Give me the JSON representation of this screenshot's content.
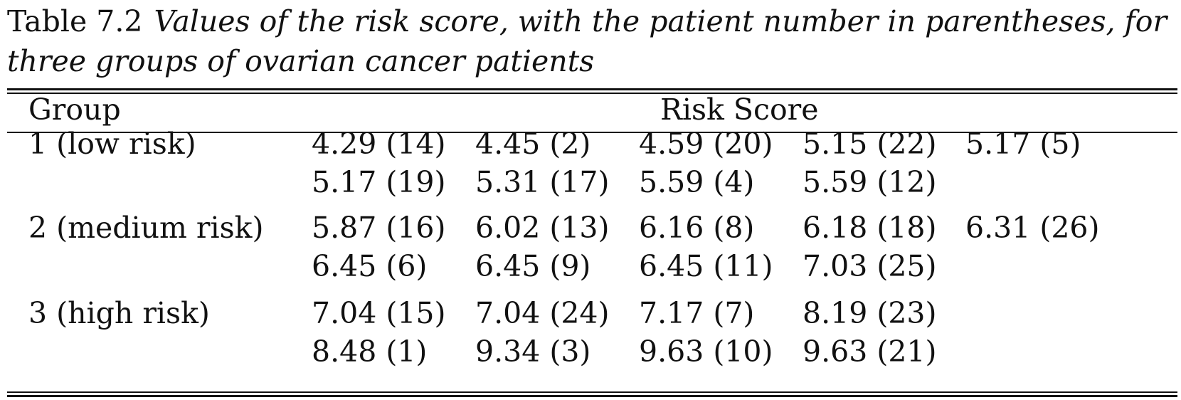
{
  "caption": {
    "label": "Table 7.2",
    "line1": "Values of the risk score, with the patient number in parentheses, for",
    "line2": "three groups of ovarian cancer patients"
  },
  "header": {
    "group": "Group",
    "risk_score": "Risk Score"
  },
  "groups": [
    {
      "name": "1 (low risk)",
      "rows": [
        [
          "4.29 (14)",
          "4.45 (2)",
          "4.59 (20)",
          "5.15 (22)",
          "5.17 (5)"
        ],
        [
          "5.17 (19)",
          "5.31 (17)",
          "5.59 (4)",
          "5.59 (12)"
        ]
      ]
    },
    {
      "name": "2 (medium risk)",
      "rows": [
        [
          "5.87 (16)",
          "6.02 (13)",
          "6.16 (8)",
          "6.18 (18)",
          "6.31 (26)"
        ],
        [
          "6.45 (6)",
          "6.45 (9)",
          "6.45 (11)",
          "7.03 (25)"
        ]
      ]
    },
    {
      "name": "3 (high risk)",
      "rows": [
        [
          "7.04 (15)",
          "7.04 (24)",
          "7.17 (7)",
          "8.19 (23)"
        ],
        [
          "8.48 (1)",
          "9.34 (3)",
          "9.63 (10)",
          "9.63 (21)"
        ]
      ]
    }
  ]
}
